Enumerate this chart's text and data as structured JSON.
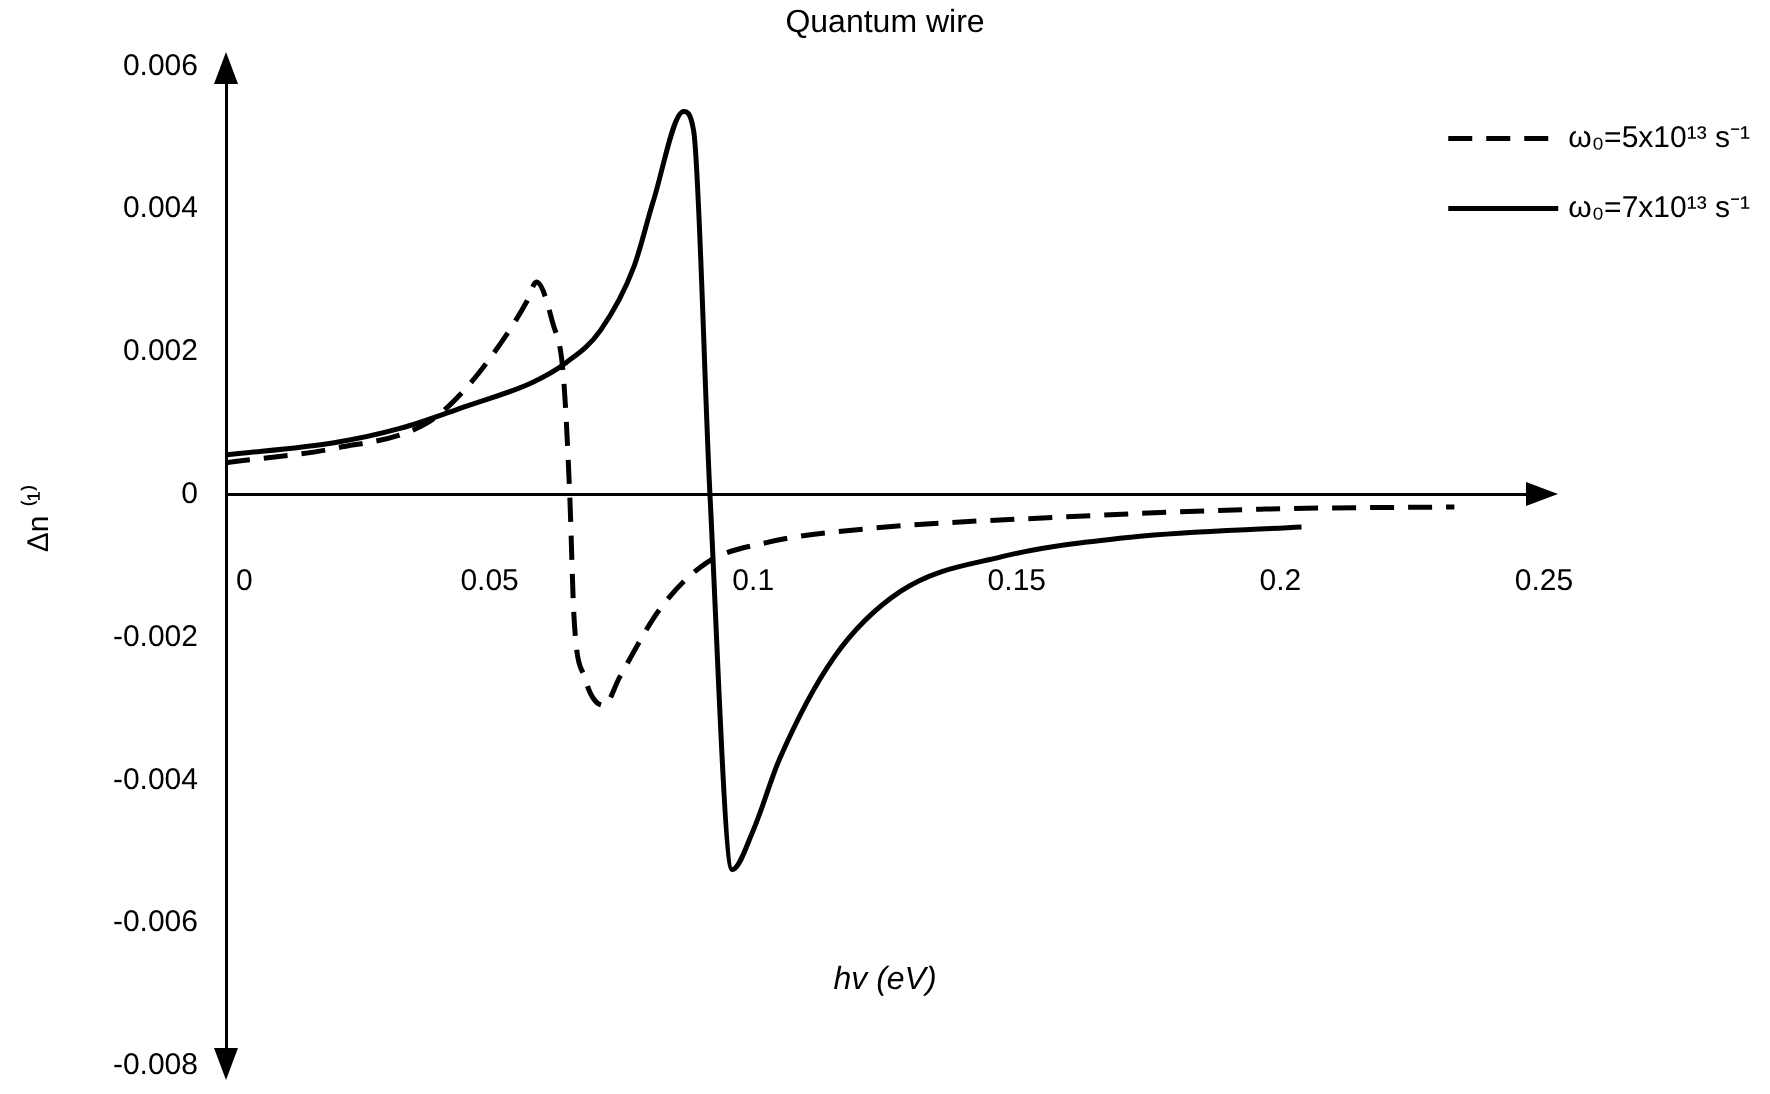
{
  "chart_data": {
    "type": "line",
    "title": "Quantum wire",
    "xlabel": "hv (eV)",
    "ylabel": "Δn ⁽¹⁾",
    "xlim": [
      0,
      0.25
    ],
    "ylim": [
      -0.008,
      0.006
    ],
    "xticks": [
      0,
      0.05,
      0.1,
      0.15,
      0.2,
      0.25
    ],
    "yticks": [
      -0.008,
      -0.006,
      -0.004,
      -0.002,
      0,
      0.002,
      0.004,
      0.006
    ],
    "legend": "top right",
    "marker": "none",
    "series": [
      {
        "name": "ω₀=5x10¹³ s⁻¹",
        "color": "#000000",
        "line_style": "dashed",
        "x": [
          0,
          0.0205,
          0.038,
          0.0455,
          0.053,
          0.057,
          0.0589,
          0.062,
          0.064,
          0.0652,
          0.066,
          0.068,
          0.0717,
          0.0747,
          0.0823,
          0.091,
          0.1025,
          0.121,
          0.159,
          0.197,
          0.233
        ],
        "values": [
          0.00045,
          0.00065,
          0.001,
          0.00149,
          0.00222,
          0.0027,
          0.00298,
          0.0024,
          0.00166,
          0,
          -0.0017,
          -0.00255,
          -0.00295,
          -0.00255,
          -0.0016,
          -0.00096,
          -0.00067,
          -0.00048,
          -0.00031,
          -0.0002,
          -0.00017
        ]
      },
      {
        "name": "ω₀=7x10¹³ s⁻¹",
        "color": "#000000",
        "line_style": "solid",
        "x": [
          0,
          0.0205,
          0.033,
          0.0455,
          0.058,
          0.0645,
          0.071,
          0.0774,
          0.081,
          0.0868,
          0.0887,
          0.0918,
          0.096,
          0.1,
          0.105,
          0.1153,
          0.128,
          0.147,
          0.172,
          0.204
        ],
        "values": [
          0.00056,
          0.00073,
          0.00093,
          0.00124,
          0.00157,
          0.00185,
          0.0023,
          0.0032,
          0.0041,
          0.00537,
          0.0051,
          0,
          -0.00525,
          -0.0047,
          -0.0037,
          -0.00228,
          -0.00135,
          -0.00087,
          -0.00059,
          -0.00045
        ]
      }
    ]
  }
}
